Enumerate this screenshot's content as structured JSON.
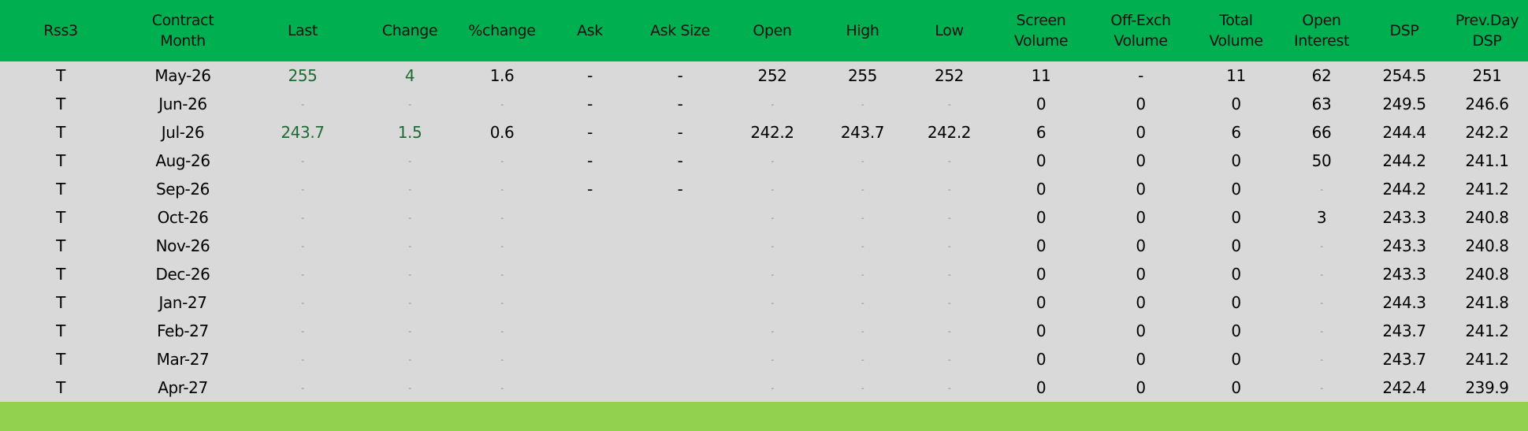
{
  "colors": {
    "header_bg": "#00b050",
    "body_bg": "#d9d9d9",
    "footer_bg": "#92d050",
    "positive_text": "#1e6b35"
  },
  "columns": [
    {
      "key": "product",
      "label": "Rss3"
    },
    {
      "key": "month",
      "label": "Contract\nMonth"
    },
    {
      "key": "last",
      "label": "Last"
    },
    {
      "key": "change",
      "label": "Change"
    },
    {
      "key": "pct_change",
      "label": "%change"
    },
    {
      "key": "ask",
      "label": "Ask"
    },
    {
      "key": "ask_size",
      "label": "Ask Size"
    },
    {
      "key": "open",
      "label": "Open"
    },
    {
      "key": "high",
      "label": "High"
    },
    {
      "key": "low",
      "label": "Low"
    },
    {
      "key": "screen_volume",
      "label": "Screen\nVolume"
    },
    {
      "key": "off_exch_volume",
      "label": "Off-Exch\nVolume"
    },
    {
      "key": "total_volume",
      "label": "Total\nVolume"
    },
    {
      "key": "open_interest",
      "label": "Open\nInterest"
    },
    {
      "key": "dsp",
      "label": "DSP"
    },
    {
      "key": "prev_day_dsp",
      "label": "Prev.Day\nDSP"
    }
  ],
  "rows": [
    [
      "T",
      "May-26",
      "255",
      "4",
      "1.6",
      "-",
      "-",
      "252",
      "255",
      "252",
      "11",
      "-",
      "11",
      "62",
      "254.5",
      "251"
    ],
    [
      "T",
      "Jun-26",
      "-",
      "-",
      "-",
      "-",
      "-",
      "-",
      "-",
      "-",
      "0",
      "0",
      "0",
      "63",
      "249.5",
      "246.6"
    ],
    [
      "T",
      "Jul-26",
      "243.7",
      "1.5",
      "0.6",
      "-",
      "-",
      "242.2",
      "243.7",
      "242.2",
      "6",
      "0",
      "6",
      "66",
      "244.4",
      "242.2"
    ],
    [
      "T",
      "Aug-26",
      "-",
      "-",
      "-",
      "-",
      "-",
      "-",
      "-",
      "-",
      "0",
      "0",
      "0",
      "50",
      "244.2",
      "241.1"
    ],
    [
      "T",
      "Sep-26",
      "-",
      "-",
      "-",
      "-",
      "-",
      "-",
      "-",
      "-",
      "0",
      "0",
      "0",
      "-",
      "244.2",
      "241.2"
    ],
    [
      "T",
      "Oct-26",
      "-",
      "-",
      "-",
      "",
      "",
      "-",
      "-",
      "-",
      "0",
      "0",
      "0",
      "3",
      "243.3",
      "240.8"
    ],
    [
      "T",
      "Nov-26",
      "-",
      "-",
      "-",
      "",
      "",
      "-",
      "-",
      "-",
      "0",
      "0",
      "0",
      "-",
      "243.3",
      "240.8"
    ],
    [
      "T",
      "Dec-26",
      "-",
      "-",
      "-",
      "",
      "",
      "-",
      "-",
      "-",
      "0",
      "0",
      "0",
      "-",
      "243.3",
      "240.8"
    ],
    [
      "T",
      "Jan-27",
      "-",
      "-",
      "-",
      "",
      "",
      "-",
      "-",
      "-",
      "0",
      "0",
      "0",
      "-",
      "244.3",
      "241.8"
    ],
    [
      "T",
      "Feb-27",
      "-",
      "-",
      "-",
      "",
      "",
      "-",
      "-",
      "-",
      "0",
      "0",
      "0",
      "-",
      "243.7",
      "241.2"
    ],
    [
      "T",
      "Mar-27",
      "-",
      "-",
      "-",
      "",
      "",
      "-",
      "-",
      "-",
      "0",
      "0",
      "0",
      "-",
      "243.7",
      "241.2"
    ],
    [
      "T",
      "Apr-27",
      "-",
      "-",
      "-",
      "",
      "",
      "-",
      "-",
      "-",
      "0",
      "0",
      "0",
      "-",
      "242.4",
      "239.9"
    ]
  ]
}
